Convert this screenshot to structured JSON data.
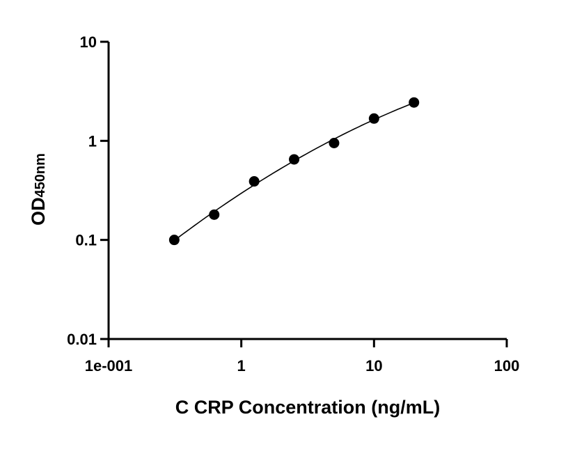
{
  "chart_data": {
    "type": "scatter",
    "xlabel": "C CRP Concentration (ng/mL)",
    "ylabel": "OD",
    "ylabel_subscript": "450nm",
    "x_scale": "log",
    "y_scale": "log",
    "xlim": [
      0.1,
      100
    ],
    "ylim": [
      0.01,
      10
    ],
    "x_ticks": [
      0.1,
      1,
      10,
      100
    ],
    "x_tick_labels": [
      "1e-001",
      "1",
      "10",
      "100"
    ],
    "y_ticks": [
      0.01,
      0.1,
      1,
      10
    ],
    "y_tick_labels": [
      "0.01",
      "0.1",
      "1",
      "10"
    ],
    "grid": false,
    "fit_curve": true,
    "x": [
      0.3125,
      0.625,
      1.25,
      2.5,
      5,
      10,
      20
    ],
    "y": [
      0.1,
      0.18,
      0.39,
      0.65,
      0.95,
      1.68,
      2.44
    ],
    "marker_color": "#000000"
  }
}
